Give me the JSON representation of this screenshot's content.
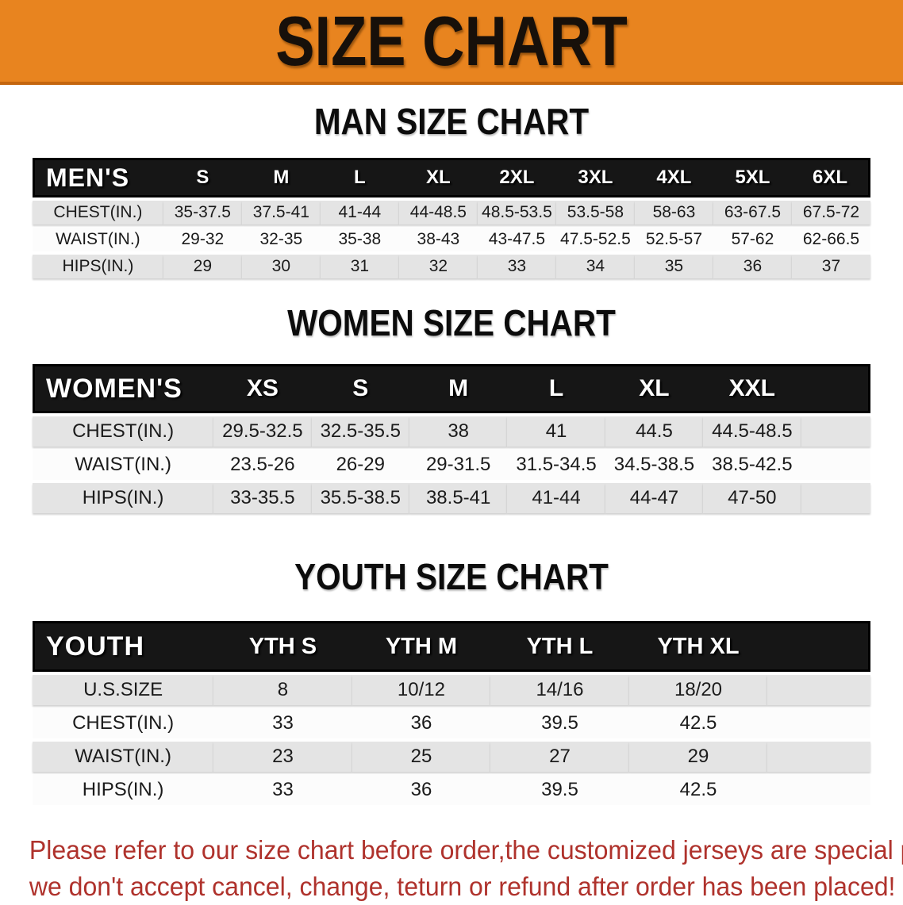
{
  "banner": {
    "title": "SIZE CHART",
    "bg_color": "#E8841F",
    "edge_color": "#C4660E",
    "text_color": "#17100a"
  },
  "sections": [
    {
      "title": "MAN SIZE CHART",
      "table": {
        "label": "MEN'S",
        "columns": [
          "S",
          "M",
          "L",
          "XL",
          "2XL",
          "3XL",
          "4XL",
          "5XL",
          "6XL"
        ],
        "filler": false,
        "rows": [
          {
            "label": "CHEST(IN.)",
            "values": [
              "35-37.5",
              "37.5-41",
              "41-44",
              "44-48.5",
              "48.5-53.5",
              "53.5-58",
              "58-63",
              "63-67.5",
              "67.5-72"
            ]
          },
          {
            "label": "WAIST(IN.)",
            "values": [
              "29-32",
              "32-35",
              "35-38",
              "38-43",
              "43-47.5",
              "47.5-52.5",
              "52.5-57",
              "57-62",
              "62-66.5"
            ]
          },
          {
            "label": "HIPS(IN.)",
            "values": [
              "29",
              "30",
              "31",
              "32",
              "33",
              "34",
              "35",
              "36",
              "37"
            ]
          }
        ]
      }
    },
    {
      "title": "WOMEN SIZE CHART",
      "table": {
        "label": "WOMEN'S",
        "columns": [
          "XS",
          "S",
          "M",
          "L",
          "XL",
          "XXL"
        ],
        "filler": true,
        "rows": [
          {
            "label": "CHEST(IN.)",
            "values": [
              "29.5-32.5",
              "32.5-35.5",
              "38",
              "41",
              "44.5",
              "44.5-48.5"
            ]
          },
          {
            "label": "WAIST(IN.)",
            "values": [
              "23.5-26",
              "26-29",
              "29-31.5",
              "31.5-34.5",
              "34.5-38.5",
              "38.5-42.5"
            ]
          },
          {
            "label": "HIPS(IN.)",
            "values": [
              "33-35.5",
              "35.5-38.5",
              "38.5-41",
              "41-44",
              "44-47",
              "47-50"
            ]
          }
        ]
      }
    },
    {
      "title": "YOUTH SIZE CHART",
      "table": {
        "label": "YOUTH",
        "columns": [
          "YTH S",
          "YTH M",
          "YTH L",
          "YTH XL"
        ],
        "filler": true,
        "rows": [
          {
            "label": "U.S.SIZE",
            "values": [
              "8",
              "10/12",
              "14/16",
              "18/20"
            ]
          },
          {
            "label": "CHEST(IN.)",
            "values": [
              "33",
              "36",
              "39.5",
              "42.5"
            ]
          },
          {
            "label": "WAIST(IN.)",
            "values": [
              "23",
              "25",
              "27",
              "29"
            ]
          },
          {
            "label": "HIPS(IN.)",
            "values": [
              "33",
              "36",
              "39.5",
              "42.5"
            ]
          }
        ]
      }
    }
  ],
  "footer": {
    "line1": "Please refer to our size chart before order,the customized jerseys are special products,",
    "line2": "we don't accept cancel, change, teturn or refund after order has been placed!",
    "text_color": "#AF322C"
  },
  "table_style": {
    "header_bg": "#161616",
    "row_gray": "#E4E4E4",
    "row_light": "#FCFCFC"
  }
}
